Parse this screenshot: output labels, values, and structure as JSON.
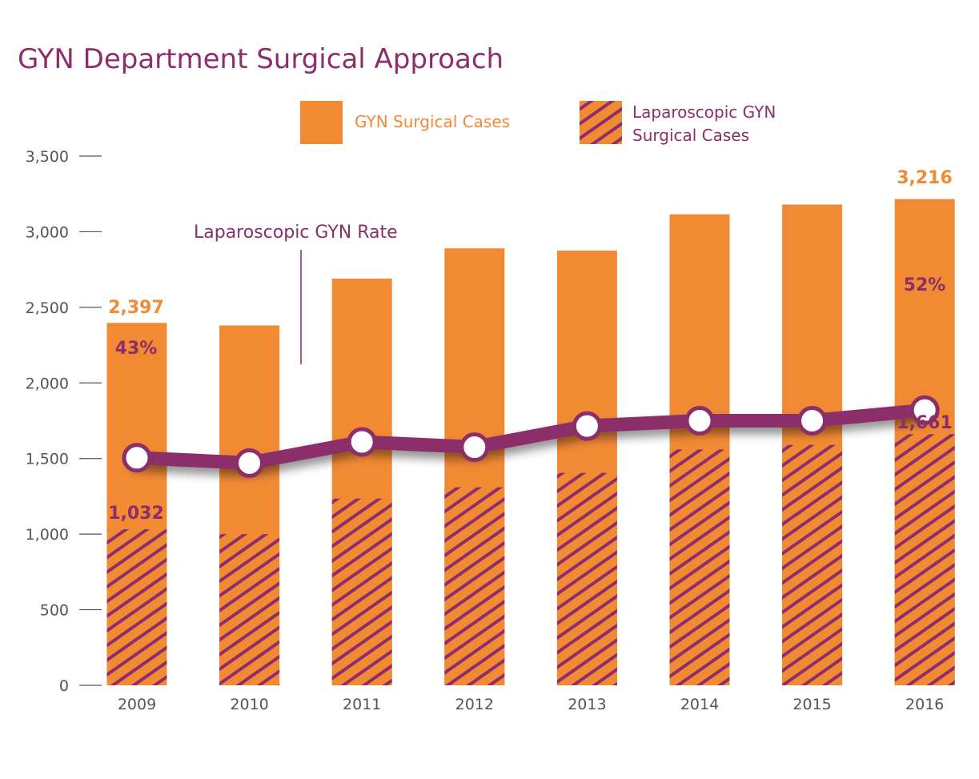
{
  "chart_data": {
    "type": "bar",
    "title": "GYN Department Surgical Approach",
    "categories": [
      "2009",
      "2010",
      "2011",
      "2012",
      "2013",
      "2014",
      "2015",
      "2016"
    ],
    "series": [
      {
        "name": "GYN Surgical Cases",
        "kind": "bar",
        "color": "#f28a34",
        "values": [
          2397,
          2380,
          2690,
          2890,
          2875,
          3115,
          3180,
          3216
        ]
      },
      {
        "name": "Laparoscopic GYN Surgical Cases",
        "kind": "bar-hatched-overlay",
        "color": "#8c2e6a",
        "values": [
          1032,
          1000,
          1235,
          1310,
          1405,
          1560,
          1590,
          1661
        ]
      },
      {
        "name": "Laparoscopic GYN Rate",
        "kind": "line",
        "color": "#8c2e6a",
        "unit": "%",
        "values": [
          43,
          42,
          46,
          45,
          49,
          50,
          50,
          52
        ]
      }
    ],
    "legend": {
      "placement": "top",
      "entries": [
        "GYN Surgical Cases",
        "Laparoscopic GYN",
        "Surgical Cases"
      ]
    },
    "annotations": {
      "rate_label": "Laparoscopic GYN Rate"
    },
    "data_labels": {
      "total_first": "2,397",
      "total_last": "3,216",
      "lap_first": "1,032",
      "lap_last": "1,661",
      "rate_first": "43%",
      "rate_last": "52%"
    },
    "ylim": [
      0,
      3500
    ],
    "rate_axis_range": [
      0,
      100
    ],
    "y_ticks": [
      "0",
      "500",
      "1,000",
      "1,500",
      "2,000",
      "2,500",
      "3,000",
      "3,500"
    ],
    "grid": false
  }
}
